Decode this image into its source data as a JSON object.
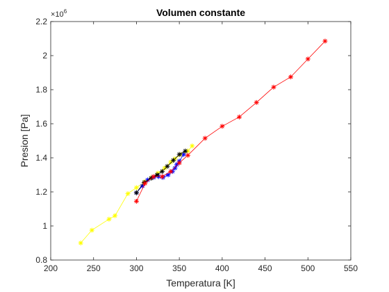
{
  "chart_data": {
    "type": "line",
    "title": "Volumen constante",
    "xlabel": "Temperatura [K]",
    "ylabel": "Presion [Pa]",
    "xlim": [
      200,
      550
    ],
    "ylim": [
      800000,
      2200000
    ],
    "xticks": [
      200,
      250,
      300,
      350,
      400,
      450,
      500,
      550
    ],
    "yticks": [
      800000,
      1000000,
      1200000,
      1400000,
      1600000,
      1800000,
      2000000,
      2200000
    ],
    "ytick_labels": [
      "0.8",
      "1",
      "1.2",
      "1.4",
      "1.6",
      "1.8",
      "2",
      "2.2"
    ],
    "y_exponent": {
      "base": "10",
      "power": "6"
    },
    "grid": false,
    "marker": "*",
    "series": [
      {
        "color": "#ffff00",
        "x": [
          235,
          248,
          268,
          275,
          290,
          300,
          310,
          318,
          325,
          333,
          340,
          345,
          352,
          360,
          365
        ],
        "y": [
          900000,
          975000,
          1040000,
          1060000,
          1190000,
          1225000,
          1260000,
          1285000,
          1310000,
          1340000,
          1375000,
          1395000,
          1420000,
          1440000,
          1470000
        ]
      },
      {
        "color": "#0000ff",
        "x": [
          300,
          307,
          313,
          320,
          326,
          331,
          337,
          342,
          345,
          347,
          350,
          355
        ],
        "y": [
          1195000,
          1235000,
          1270000,
          1285000,
          1290000,
          1285000,
          1300000,
          1320000,
          1340000,
          1360000,
          1380000,
          1420000
        ]
      },
      {
        "color": "#000000",
        "x": [
          300,
          309,
          317,
          324,
          330,
          336,
          343,
          350,
          357
        ],
        "y": [
          1195000,
          1255000,
          1280000,
          1300000,
          1320000,
          1350000,
          1385000,
          1420000,
          1440000
        ]
      },
      {
        "color": "#ff0000",
        "x": [
          300,
          310,
          320,
          330,
          340,
          350,
          360,
          380,
          400,
          420,
          440,
          460,
          480,
          500,
          520
        ],
        "y": [
          1145000,
          1250000,
          1290000,
          1290000,
          1320000,
          1370000,
          1415000,
          1515000,
          1585000,
          1640000,
          1725000,
          1815000,
          1875000,
          1980000,
          2085000
        ]
      }
    ]
  }
}
